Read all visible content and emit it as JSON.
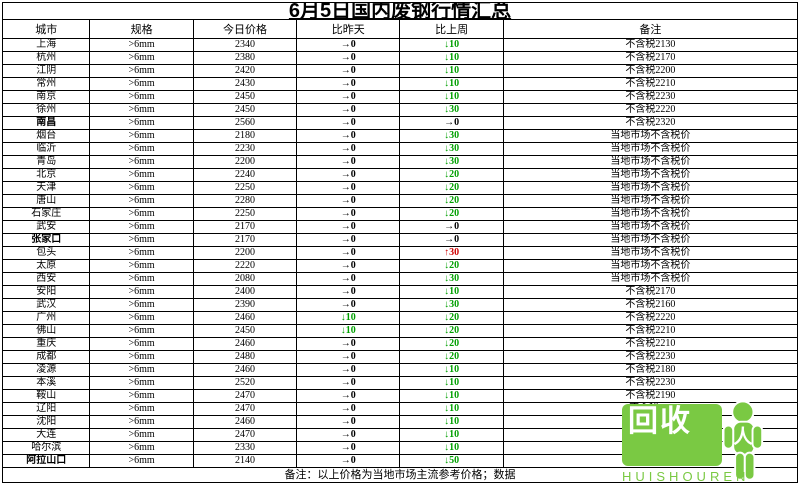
{
  "title": "6月5日国内废钢行情汇总",
  "columns": [
    "城市",
    "规格",
    "今日价格",
    "比昨天",
    "比上周",
    "备注"
  ],
  "footer": "备注：以上价格为当地市场主流参考价格；数据",
  "spec": ">6mm",
  "note_local": "当地市场不含税价",
  "bold_cities": [
    "南昌",
    "张家口",
    "阿拉山口"
  ],
  "rows": [
    {
      "city": "上海",
      "price": "2340",
      "dy_dir": "flat",
      "dy": "0",
      "dw_dir": "down",
      "dw": "10",
      "note": "不含税2130"
    },
    {
      "city": "杭州",
      "price": "2380",
      "dy_dir": "flat",
      "dy": "0",
      "dw_dir": "down",
      "dw": "10",
      "note": "不含税2170"
    },
    {
      "city": "江阴",
      "price": "2420",
      "dy_dir": "flat",
      "dy": "0",
      "dw_dir": "down",
      "dw": "10",
      "note": "不含税2200"
    },
    {
      "city": "常州",
      "price": "2430",
      "dy_dir": "flat",
      "dy": "0",
      "dw_dir": "down",
      "dw": "10",
      "note": "不含税2210"
    },
    {
      "city": "南京",
      "price": "2450",
      "dy_dir": "flat",
      "dy": "0",
      "dw_dir": "down",
      "dw": "10",
      "note": "不含税2230"
    },
    {
      "city": "徐州",
      "price": "2450",
      "dy_dir": "flat",
      "dy": "0",
      "dw_dir": "down",
      "dw": "30",
      "note": "不含税2220"
    },
    {
      "city": "南昌",
      "price": "2560",
      "dy_dir": "flat",
      "dy": "0",
      "dw_dir": "flat",
      "dw": "0",
      "note": "不含税2320"
    },
    {
      "city": "烟台",
      "price": "2180",
      "dy_dir": "flat",
      "dy": "0",
      "dw_dir": "down",
      "dw": "30",
      "note": "local"
    },
    {
      "city": "临沂",
      "price": "2230",
      "dy_dir": "flat",
      "dy": "0",
      "dw_dir": "down",
      "dw": "30",
      "note": "local"
    },
    {
      "city": "青岛",
      "price": "2200",
      "dy_dir": "flat",
      "dy": "0",
      "dw_dir": "down",
      "dw": "30",
      "note": "local"
    },
    {
      "city": "北京",
      "price": "2240",
      "dy_dir": "flat",
      "dy": "0",
      "dw_dir": "down",
      "dw": "20",
      "note": "local"
    },
    {
      "city": "天津",
      "price": "2250",
      "dy_dir": "flat",
      "dy": "0",
      "dw_dir": "down",
      "dw": "20",
      "note": "local"
    },
    {
      "city": "唐山",
      "price": "2280",
      "dy_dir": "flat",
      "dy": "0",
      "dw_dir": "down",
      "dw": "20",
      "note": "local"
    },
    {
      "city": "石家庄",
      "price": "2250",
      "dy_dir": "flat",
      "dy": "0",
      "dw_dir": "down",
      "dw": "20",
      "note": "local"
    },
    {
      "city": "武安",
      "price": "2170",
      "dy_dir": "flat",
      "dy": "0",
      "dw_dir": "flat",
      "dw": "0",
      "note": "local"
    },
    {
      "city": "张家口",
      "price": "2170",
      "dy_dir": "flat",
      "dy": "0",
      "dw_dir": "flat",
      "dw": "0",
      "note": "local"
    },
    {
      "city": "包头",
      "price": "2200",
      "dy_dir": "flat",
      "dy": "0",
      "dw_dir": "up",
      "dw": "30",
      "note": "local"
    },
    {
      "city": "太原",
      "price": "2220",
      "dy_dir": "flat",
      "dy": "0",
      "dw_dir": "down",
      "dw": "20",
      "note": "local"
    },
    {
      "city": "西安",
      "price": "2080",
      "dy_dir": "flat",
      "dy": "0",
      "dw_dir": "down",
      "dw": "30",
      "note": "local"
    },
    {
      "city": "安阳",
      "price": "2400",
      "dy_dir": "flat",
      "dy": "0",
      "dw_dir": "down",
      "dw": "10",
      "note": "不含税2170"
    },
    {
      "city": "武汉",
      "price": "2390",
      "dy_dir": "flat",
      "dy": "0",
      "dw_dir": "down",
      "dw": "30",
      "note": "不含税2160"
    },
    {
      "city": "广州",
      "price": "2460",
      "dy_dir": "down",
      "dy": "10",
      "dw_dir": "down",
      "dw": "20",
      "note": "不含税2220"
    },
    {
      "city": "佛山",
      "price": "2450",
      "dy_dir": "down",
      "dy": "10",
      "dw_dir": "down",
      "dw": "20",
      "note": "不含税2210"
    },
    {
      "city": "重庆",
      "price": "2460",
      "dy_dir": "flat",
      "dy": "0",
      "dw_dir": "down",
      "dw": "20",
      "note": "不含税2210"
    },
    {
      "city": "成都",
      "price": "2480",
      "dy_dir": "flat",
      "dy": "0",
      "dw_dir": "down",
      "dw": "20",
      "note": "不含税2230"
    },
    {
      "city": "凌源",
      "price": "2460",
      "dy_dir": "flat",
      "dy": "0",
      "dw_dir": "down",
      "dw": "10",
      "note": "不含税2180"
    },
    {
      "city": "本溪",
      "price": "2520",
      "dy_dir": "flat",
      "dy": "0",
      "dw_dir": "down",
      "dw": "10",
      "note": "不含税2230"
    },
    {
      "city": "鞍山",
      "price": "2470",
      "dy_dir": "flat",
      "dy": "0",
      "dw_dir": "down",
      "dw": "10",
      "note": "不含税2190"
    },
    {
      "city": "辽阳",
      "price": "2470",
      "dy_dir": "flat",
      "dy": "0",
      "dw_dir": "down",
      "dw": "10",
      "note": "不含税2  0"
    },
    {
      "city": "沈阳",
      "price": "2460",
      "dy_dir": "flat",
      "dy": "0",
      "dw_dir": "down",
      "dw": "10",
      "note": "不含税   9"
    },
    {
      "city": "大连",
      "price": "2470",
      "dy_dir": "flat",
      "dy": "0",
      "dw_dir": "down",
      "dw": "10",
      "note": "不含税   19"
    },
    {
      "city": "哈尔滨",
      "price": "2330",
      "dy_dir": "flat",
      "dy": "0",
      "dw_dir": "down",
      "dw": "10",
      "note": "不含税2060"
    },
    {
      "city": "阿拉山口",
      "price": "2140",
      "dy_dir": "flat",
      "dy": "0",
      "dw_dir": "down",
      "dw": "50",
      "note": "不含税  850"
    }
  ],
  "logo": {
    "text_top": "回收",
    "text_side": "人",
    "sub": "HUISHOUREN",
    "color": "#7ac943"
  }
}
